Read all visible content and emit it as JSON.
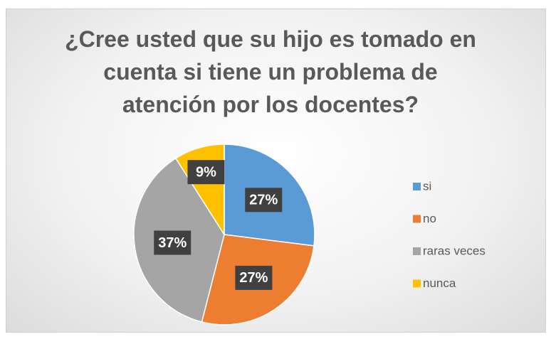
{
  "chart_data": {
    "type": "pie",
    "title": "¿Cree usted que su hijo es tomado en cuenta si tiene un problema de atención por los docentes?",
    "categories": [
      "si",
      "no",
      "raras veces",
      "nunca"
    ],
    "values": [
      27,
      27,
      37,
      9
    ],
    "value_labels": [
      "27%",
      "27%",
      "37%",
      "9%"
    ],
    "colors": [
      "#5b9bd5",
      "#ed7d31",
      "#a5a5a5",
      "#ffc000"
    ],
    "legend": "right"
  }
}
